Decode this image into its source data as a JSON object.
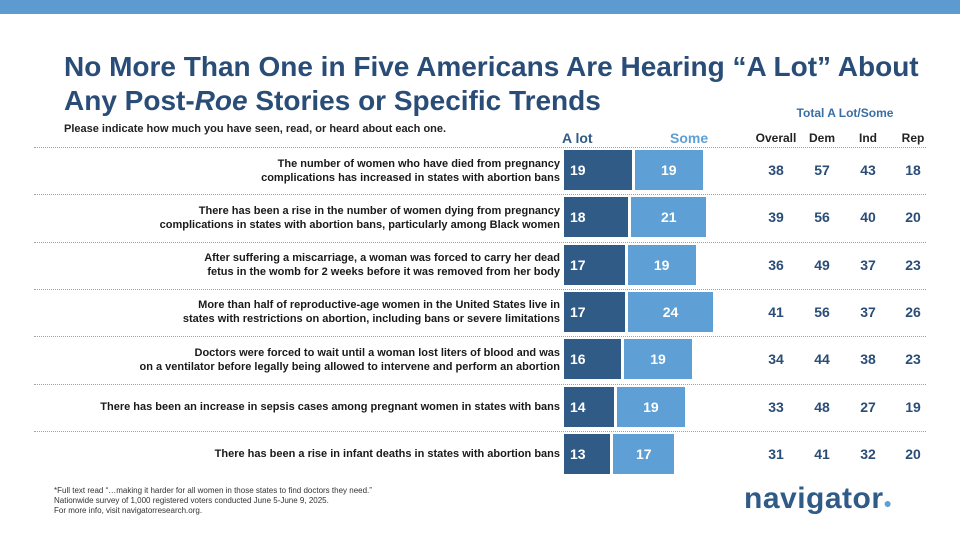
{
  "header": {
    "title_line1": "No More Than One in Five Americans Are Hearing “A Lot” About",
    "title_line2_pre": "Any Post-",
    "title_line2_em": "Roe",
    "title_line2_post": " Stories or Specific Trends",
    "subtitle": "Please indicate how much you have seen, read, or heard about each one."
  },
  "colors": {
    "a_lot": "#2f5b86",
    "some": "#5e9fd5",
    "title": "#2a4d78",
    "top_bar": "#5b9bd0"
  },
  "chart_data": {
    "type": "bar",
    "orientation": "horizontal",
    "stacked": true,
    "series_labels": [
      "A lot",
      "Some"
    ],
    "categories": [
      "The number of women who have died from pregnancy complications has increased in states with abortion bans",
      "There has been a rise in the number of women dying from pregnancy complications in states with abortion bans, particularly among Black women",
      "After suffering a miscarriage, a woman was forced to carry her dead fetus in the womb for 2 weeks before it was removed from her body",
      "More than half of reproductive-age women in the United States live in states with restrictions on abortion, including bans or severe limitations",
      "Doctors were forced to wait until a woman lost liters of blood and was on a ventilator before legally being allowed to intervene and perform an abortion",
      "There has been an increase in sepsis cases among pregnant women in states with bans",
      "There has been a rise in infant deaths in states with abortion bans"
    ],
    "label_lines": [
      [
        "The number of women who have died from pregnancy",
        "complications has increased in states with abortion bans"
      ],
      [
        "There has been a rise in the number of women dying from pregnancy",
        "complications in states with abortion bans, particularly among Black women"
      ],
      [
        "After suffering a miscarriage, a woman was forced to carry her dead",
        "fetus in the womb for 2 weeks before it was removed from her body"
      ],
      [
        "More than half of reproductive-age women in the United States live in",
        "states with restrictions on abortion, including bans or severe limitations"
      ],
      [
        "Doctors were forced to wait until a woman lost liters of blood and was",
        "on a ventilator before legally being allowed to intervene and perform an abortion"
      ],
      [
        "There has been an increase in sepsis cases among pregnant women in states with bans"
      ],
      [
        "There has been a rise in infant deaths in states with abortion bans"
      ]
    ],
    "series": [
      {
        "name": "A lot",
        "values": [
          19,
          18,
          17,
          17,
          16,
          14,
          13
        ]
      },
      {
        "name": "Some",
        "values": [
          19,
          21,
          19,
          24,
          19,
          19,
          17
        ]
      }
    ],
    "totals": {
      "title": "Total A Lot/Some",
      "columns": [
        "Overall",
        "Dem",
        "Ind",
        "Rep"
      ],
      "rows": [
        [
          38,
          57,
          43,
          18
        ],
        [
          39,
          56,
          40,
          20
        ],
        [
          36,
          49,
          37,
          23
        ],
        [
          41,
          56,
          37,
          26
        ],
        [
          34,
          44,
          38,
          23
        ],
        [
          33,
          48,
          27,
          19
        ],
        [
          31,
          41,
          32,
          20
        ]
      ]
    }
  },
  "footer": {
    "notes": [
      "*Full text read “…making it harder for all women in those states to find doctors they need.”",
      "Nationwide survey of 1,000 registered voters conducted June 5-June 9, 2025.",
      "For more info, visit navigatorresearch.org."
    ],
    "logo": "navigator",
    "logo_mark": "●"
  }
}
